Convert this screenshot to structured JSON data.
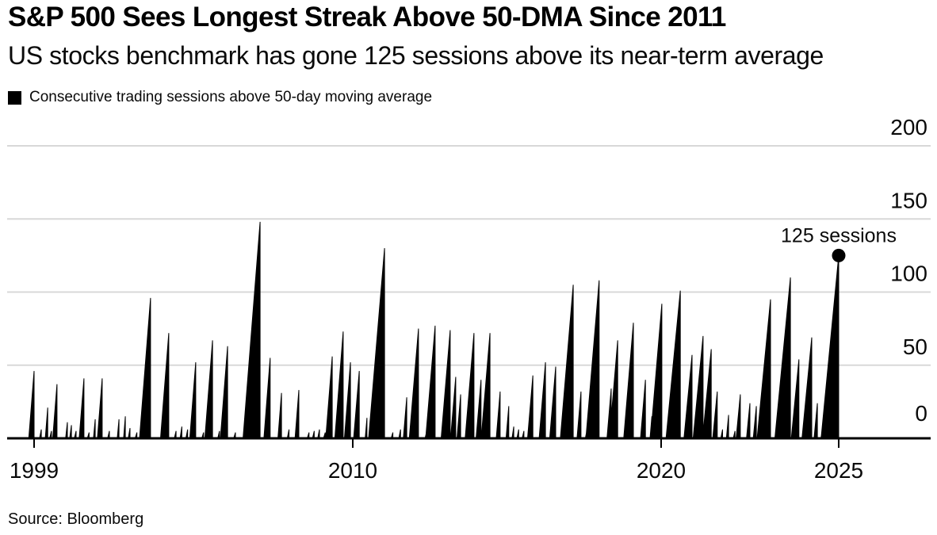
{
  "header": {
    "title": "S&P 500 Sees Longest Streak Above 50-DMA Since 2011",
    "subtitle": "US stocks benchmark has gone 125 sessions above its near-term average"
  },
  "legend": {
    "label": "Consecutive trading sessions above 50-day moving average",
    "swatch_color": "#000000"
  },
  "source": "Source: Bloomberg",
  "chart_data": {
    "type": "area",
    "title": "S&P 500 Sees Longest Streak Above 50-DMA Since 2011",
    "subtitle": "US stocks benchmark has gone 125 sessions above its near-term average",
    "series_name": "Consecutive trading sessions above 50-day moving average",
    "ylabel": "sessions",
    "y_axis": {
      "ticks": [
        0,
        50,
        100,
        150,
        200
      ],
      "range": [
        0,
        200
      ],
      "side": "right",
      "grid": true
    },
    "x_axis": {
      "tick_labels": [
        "1999",
        "2010",
        "2020",
        "2025"
      ],
      "tick_years": [
        1999,
        2010,
        2020,
        2025
      ],
      "range_years": [
        1998.1,
        2027.6
      ]
    },
    "annotation": {
      "text": "125 sessions",
      "year": 2025.0,
      "value": 125
    },
    "colors": {
      "series": "#000000",
      "gridline": "#d8d8d8",
      "axis": "#000000",
      "text": "#0a0a0a"
    },
    "legend_position": "top-left",
    "streaks_format": "[streak_end_as_decimal_year, consecutive_sessions]",
    "streaks": [
      [
        1999.0,
        46
      ],
      [
        1999.25,
        6
      ],
      [
        1999.47,
        21
      ],
      [
        1999.6,
        5
      ],
      [
        1999.79,
        37
      ],
      [
        2000.15,
        11
      ],
      [
        2000.29,
        9
      ],
      [
        2000.45,
        5
      ],
      [
        2000.72,
        41
      ],
      [
        2000.9,
        4
      ],
      [
        2001.11,
        13
      ],
      [
        2001.35,
        41
      ],
      [
        2001.6,
        5
      ],
      [
        2001.93,
        13
      ],
      [
        2002.15,
        15
      ],
      [
        2002.31,
        7
      ],
      [
        2002.55,
        4
      ],
      [
        2002.75,
        5
      ],
      [
        2003.02,
        96
      ],
      [
        2003.65,
        72
      ],
      [
        2003.9,
        5
      ],
      [
        2004.1,
        8
      ],
      [
        2004.3,
        6
      ],
      [
        2004.58,
        52
      ],
      [
        2004.85,
        4
      ],
      [
        2005.16,
        67
      ],
      [
        2005.4,
        5
      ],
      [
        2005.68,
        63
      ],
      [
        2005.95,
        4
      ],
      [
        2006.8,
        148
      ],
      [
        2007.15,
        55
      ],
      [
        2007.54,
        31
      ],
      [
        2007.8,
        6
      ],
      [
        2008.14,
        33
      ],
      [
        2008.49,
        4
      ],
      [
        2008.67,
        5
      ],
      [
        2008.85,
        6
      ],
      [
        2009.05,
        4
      ],
      [
        2009.29,
        56
      ],
      [
        2009.67,
        73
      ],
      [
        2009.92,
        52
      ],
      [
        2010.21,
        46
      ],
      [
        2010.46,
        14
      ],
      [
        2010.62,
        6
      ],
      [
        2010.78,
        5
      ],
      [
        2011.03,
        130
      ],
      [
        2011.3,
        4
      ],
      [
        2011.55,
        6
      ],
      [
        2011.75,
        28
      ],
      [
        2012.13,
        75
      ],
      [
        2012.4,
        5
      ],
      [
        2012.67,
        77
      ],
      [
        2012.92,
        6
      ],
      [
        2013.16,
        74
      ],
      [
        2013.34,
        42
      ],
      [
        2013.5,
        30
      ],
      [
        2013.7,
        4
      ],
      [
        2013.93,
        72
      ],
      [
        2014.16,
        40
      ],
      [
        2014.45,
        72
      ],
      [
        2014.78,
        32
      ],
      [
        2015.06,
        22
      ],
      [
        2015.22,
        8
      ],
      [
        2015.38,
        6
      ],
      [
        2015.55,
        5
      ],
      [
        2015.84,
        43
      ],
      [
        2016.25,
        52
      ],
      [
        2016.58,
        49
      ],
      [
        2016.8,
        7
      ],
      [
        2017.15,
        105
      ],
      [
        2017.4,
        32
      ],
      [
        2017.6,
        6
      ],
      [
        2017.99,
        108
      ],
      [
        2018.38,
        34
      ],
      [
        2018.59,
        67
      ],
      [
        2018.85,
        5
      ],
      [
        2019.1,
        79
      ],
      [
        2019.49,
        40
      ],
      [
        2019.7,
        15
      ],
      [
        2019.88,
        6
      ],
      [
        2020.02,
        92
      ],
      [
        2020.54,
        101
      ],
      [
        2020.7,
        8
      ],
      [
        2020.87,
        57
      ],
      [
        2021.18,
        70
      ],
      [
        2021.41,
        61
      ],
      [
        2021.58,
        32
      ],
      [
        2021.73,
        6
      ],
      [
        2021.9,
        16
      ],
      [
        2022.08,
        5
      ],
      [
        2022.23,
        30
      ],
      [
        2022.5,
        24
      ],
      [
        2022.68,
        22
      ],
      [
        2022.88,
        6
      ],
      [
        2023.08,
        95
      ],
      [
        2023.35,
        7
      ],
      [
        2023.64,
        110
      ],
      [
        2023.88,
        54
      ],
      [
        2024.05,
        5
      ],
      [
        2024.24,
        69
      ],
      [
        2024.4,
        24
      ],
      [
        2024.55,
        8
      ],
      [
        2024.68,
        5
      ],
      [
        2025.0,
        125
      ]
    ]
  }
}
